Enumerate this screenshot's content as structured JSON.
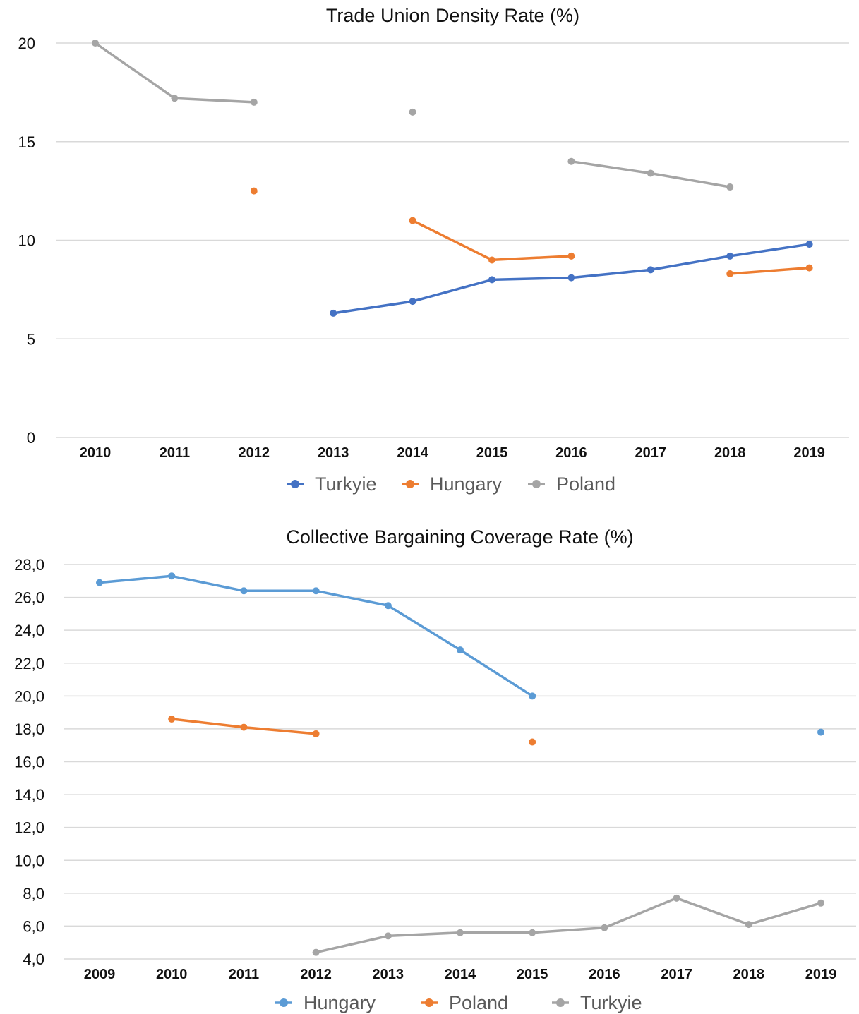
{
  "chart_data": [
    {
      "type": "line",
      "title": "Trade Union Density Rate (%)",
      "xlabel": "",
      "ylabel": "",
      "categories": [
        "2010",
        "2011",
        "2012",
        "2013",
        "2014",
        "2015",
        "2016",
        "2017",
        "2018",
        "2019"
      ],
      "ylim": [
        0,
        20
      ],
      "y_ticks": [
        0,
        5,
        10,
        15,
        20
      ],
      "y_tick_labels": [
        "0",
        "5",
        "10",
        "15",
        "20"
      ],
      "grid": true,
      "legend_position": "bottom",
      "series": [
        {
          "name": "Turkyie",
          "color": "#4472c4",
          "values": [
            null,
            null,
            null,
            6.3,
            6.9,
            8.0,
            8.1,
            8.5,
            9.2,
            9.8
          ]
        },
        {
          "name": "Hungary",
          "color": "#ed7d31",
          "values": [
            null,
            null,
            12.5,
            null,
            11.0,
            9.0,
            9.2,
            null,
            8.3,
            8.6
          ]
        },
        {
          "name": "Poland",
          "color": "#a5a5a5",
          "values": [
            20.0,
            17.2,
            17.0,
            null,
            16.5,
            null,
            14.0,
            13.4,
            12.7,
            null
          ]
        }
      ]
    },
    {
      "type": "line",
      "title": "Collective Bargaining Coverage Rate (%)",
      "xlabel": "",
      "ylabel": "",
      "categories": [
        "2009",
        "2010",
        "2011",
        "2012",
        "2013",
        "2014",
        "2015",
        "2016",
        "2017",
        "2018",
        "2019"
      ],
      "ylim": [
        4,
        28
      ],
      "y_ticks": [
        4,
        6,
        8,
        10,
        12,
        14,
        16,
        18,
        20,
        22,
        24,
        26,
        28
      ],
      "y_tick_labels": [
        "4,0",
        "6,0",
        "8,0",
        "10,0",
        "12,0",
        "14,0",
        "16,0",
        "18,0",
        "20,0",
        "22,0",
        "24,0",
        "26,0",
        "28,0"
      ],
      "grid": true,
      "legend_position": "bottom",
      "series": [
        {
          "name": "Hungary",
          "color": "#5b9bd5",
          "values": [
            26.9,
            27.3,
            26.4,
            26.4,
            25.5,
            22.8,
            20.0,
            null,
            null,
            null,
            17.8
          ]
        },
        {
          "name": "Poland",
          "color": "#ed7d31",
          "values": [
            null,
            18.6,
            18.1,
            17.7,
            null,
            null,
            17.2,
            null,
            null,
            null,
            null
          ]
        },
        {
          "name": "Turkyie",
          "color": "#a5a5a5",
          "values": [
            null,
            null,
            null,
            4.4,
            5.4,
            5.6,
            5.6,
            5.9,
            7.7,
            6.1,
            7.4
          ]
        }
      ]
    }
  ]
}
